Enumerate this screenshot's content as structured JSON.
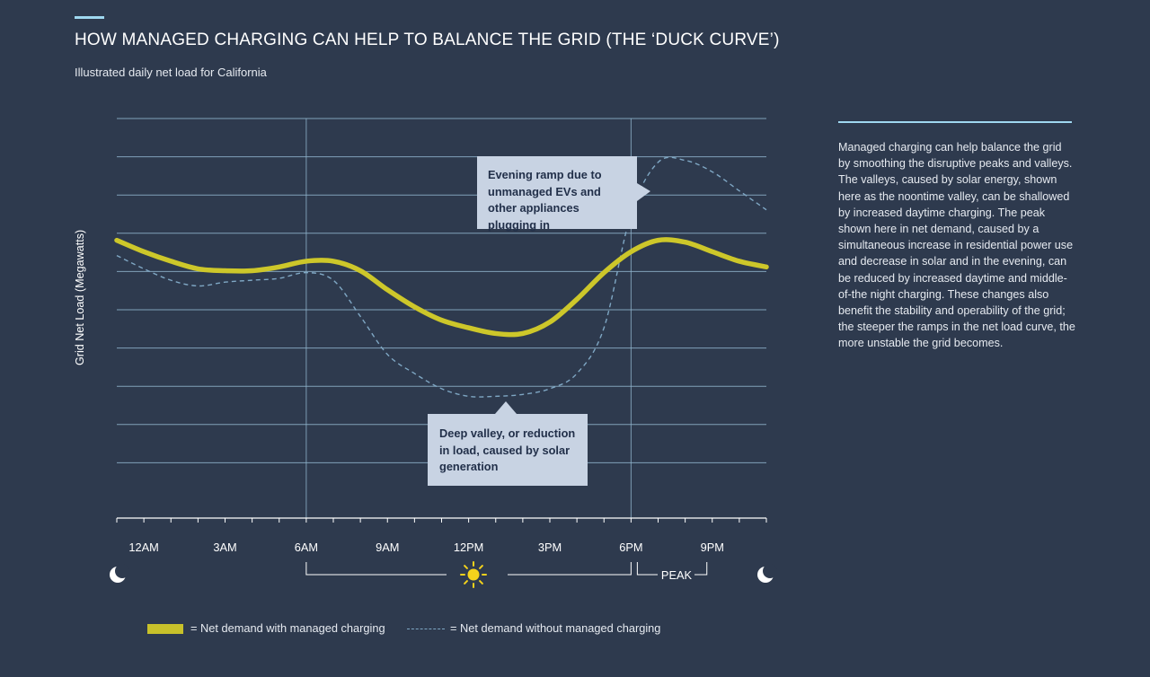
{
  "header": {
    "title": "HOW MANAGED CHARGING CAN HELP TO BALANCE THE GRID (THE ‘DUCK CURVE’)",
    "subtitle": "Illustrated daily net load for California"
  },
  "sidebar": {
    "text": "Managed charging can help balance the grid by smoothing the disruptive peaks and valleys. The valleys, caused by solar energy, shown here as the noontime valley, can be shallowed by increased daytime charging. The peak shown here in net demand, caused by a simultaneous increase in residential power use and decrease in solar and in the evening, can be reduced by increased daytime and middle-of-the night charging. These changes also benefit the stability and operability of the grid; the steeper the ramps in the net load curve, the more unstable the grid becomes."
  },
  "callouts": {
    "evening": "Evening ramp due to unmanaged EVs and other appliances plugging in",
    "valley": "Deep valley, or reduction in load, caused by solar generation"
  },
  "legend": {
    "managed": "= Net demand with managed charging",
    "unmanaged": "= Net demand without managed charging"
  },
  "colors": {
    "background": "#2e3a4e",
    "managed": "#cdc72a",
    "unmanaged": "#7fa7c4",
    "grid": "#8fb4cc",
    "accent": "#9fd8f0",
    "sun": "#f3d21c"
  },
  "chart_data": {
    "type": "line",
    "title": "HOW MANAGED CHARGING CAN HELP TO BALANCE THE GRID (THE ‘DUCK CURVE’)",
    "ylabel": "Grid Net Load (Megawatts)",
    "xlabel": "",
    "xlim": [
      -1,
      23
    ],
    "ylim": [
      0,
      10.5
    ],
    "gridlines": 10,
    "x_ticks": [
      {
        "x": 0,
        "label": "12AM"
      },
      {
        "x": 3,
        "label": "3AM"
      },
      {
        "x": 6,
        "label": "6AM"
      },
      {
        "x": 9,
        "label": "9AM"
      },
      {
        "x": 12,
        "label": "12PM"
      },
      {
        "x": 15,
        "label": "3PM"
      },
      {
        "x": 18,
        "label": "6PM"
      },
      {
        "x": 21,
        "label": "9PM"
      }
    ],
    "vertical_markers": [
      6,
      18
    ],
    "annotations": {
      "daytime_span": [
        6,
        18
      ],
      "peak_label": "PEAK",
      "peak_span": [
        18,
        21
      ]
    },
    "series": [
      {
        "name": "Net demand with managed charging",
        "style": "solid",
        "x": [
          -1,
          0,
          1,
          2,
          3,
          4,
          5,
          6,
          7,
          8,
          9,
          10,
          11,
          12,
          13,
          14,
          15,
          16,
          17,
          18,
          19,
          20,
          21,
          22,
          23
        ],
        "y": [
          7.3,
          7.0,
          6.75,
          6.55,
          6.5,
          6.5,
          6.6,
          6.75,
          6.75,
          6.5,
          6.0,
          5.55,
          5.2,
          5.0,
          4.85,
          4.85,
          5.15,
          5.75,
          6.45,
          7.0,
          7.3,
          7.25,
          7.0,
          6.75,
          6.6
        ],
        "smooth": true
      },
      {
        "name": "Net demand without managed charging",
        "style": "dashed",
        "x": [
          -1,
          0,
          1,
          2,
          3,
          4,
          5,
          6,
          7,
          8,
          9,
          10,
          11,
          12,
          13,
          14,
          15,
          16,
          17,
          18,
          19,
          20,
          21,
          22,
          23
        ],
        "y": [
          6.9,
          6.55,
          6.25,
          6.1,
          6.2,
          6.25,
          6.3,
          6.45,
          6.25,
          5.3,
          4.3,
          3.8,
          3.4,
          3.2,
          3.2,
          3.25,
          3.4,
          3.8,
          5.0,
          8.0,
          9.35,
          9.4,
          9.1,
          8.6,
          8.1
        ],
        "smooth": true
      }
    ]
  }
}
